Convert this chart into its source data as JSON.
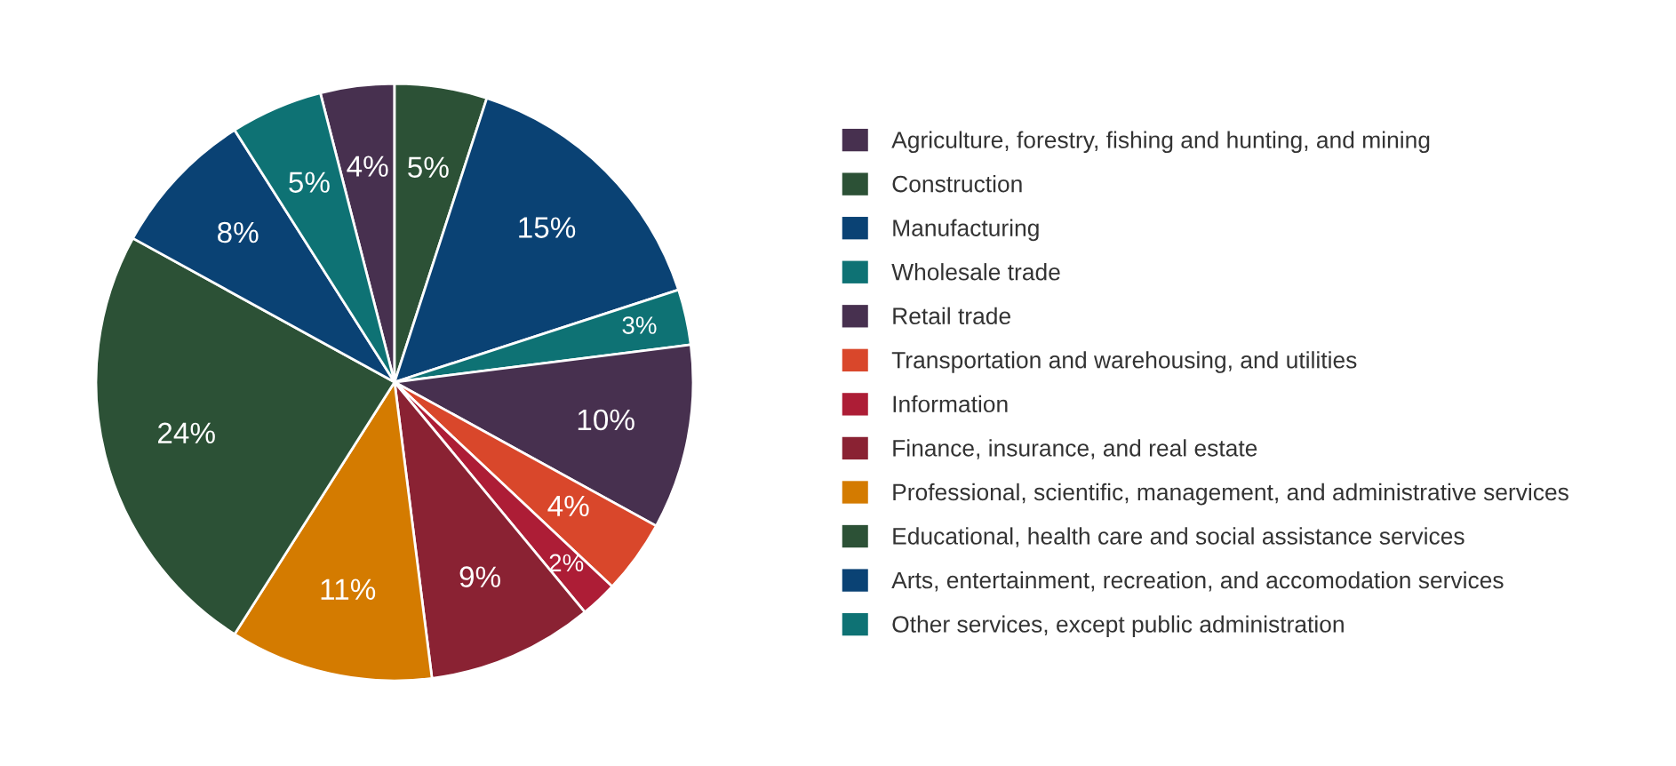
{
  "chart_data": {
    "type": "pie",
    "categories": [
      "Agriculture, forestry, fishing and hunting, and mining",
      "Construction",
      "Manufacturing",
      "Wholesale trade",
      "Retail trade",
      "Transportation and warehousing, and utilities",
      "Information",
      "Finance, insurance, and real estate",
      "Professional, scientific, management, and administrative services",
      "Educational, health care and social assistance services",
      "Arts, entertainment, recreation, and accomodation services",
      "Other services, except public administration"
    ],
    "values": [
      4,
      5,
      15,
      3,
      10,
      4,
      2,
      9,
      11,
      24,
      8,
      5
    ],
    "value_labels": [
      "4%",
      "5%",
      "15%",
      "3%",
      "10%",
      "4%",
      "2%",
      "9%",
      "11%",
      "24%",
      "8%",
      "5%"
    ],
    "colors": [
      "#47304f",
      "#2c5136",
      "#0a4274",
      "#0e7274",
      "#47304f",
      "#d9472b",
      "#ad1d36",
      "#8a2233",
      "#d47b00",
      "#2c5136",
      "#0a4274",
      "#0e7274"
    ],
    "legend": "right"
  }
}
